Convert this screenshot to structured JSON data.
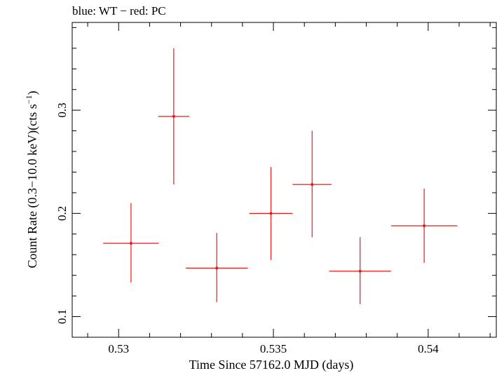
{
  "chart_data": {
    "type": "scatter",
    "title": "blue: WT − red: PC",
    "xlabel": "Time Since 57162.0 MJD (days)",
    "ylabel": {
      "prefix": "Count Rate (0.3−10.0 keV)(cts s",
      "superscript": "−1",
      "suffix": ")"
    },
    "xlim": [
      0.5285,
      0.5422
    ],
    "ylim": [
      0.08,
      0.385
    ],
    "x_ticks": [
      {
        "value": 0.53,
        "label": "0.53"
      },
      {
        "value": 0.535,
        "label": "0.535"
      },
      {
        "value": 0.54,
        "label": "0.54"
      }
    ],
    "y_ticks": [
      {
        "value": 0.1,
        "label": "0.1"
      },
      {
        "value": 0.2,
        "label": "0.2"
      },
      {
        "value": 0.3,
        "label": "0.3"
      }
    ],
    "grid": false,
    "series": [
      {
        "color": "#e41a1c",
        "points": [
          {
            "x": 0.5304,
            "y": 0.171,
            "xerr_low": 0.0009,
            "xerr_high": 0.0009,
            "y_low": 0.133,
            "y_high": 0.21
          },
          {
            "x": 0.53178,
            "y": 0.294,
            "xerr_low": 0.0005,
            "xerr_high": 0.0005,
            "y_low": 0.228,
            "y_high": 0.36
          },
          {
            "x": 0.53317,
            "y": 0.147,
            "xerr_low": 0.001,
            "xerr_high": 0.001,
            "y_low": 0.114,
            "y_high": 0.181
          },
          {
            "x": 0.53492,
            "y": 0.2,
            "xerr_low": 0.0007,
            "xerr_high": 0.0007,
            "y_low": 0.155,
            "y_high": 0.245
          },
          {
            "x": 0.53625,
            "y": 0.228,
            "xerr_low": 0.00063,
            "xerr_high": 0.00063,
            "y_low": 0.177,
            "y_high": 0.28
          },
          {
            "x": 0.5378,
            "y": 0.144,
            "xerr_low": 0.001,
            "xerr_high": 0.001,
            "y_low": 0.112,
            "y_high": 0.177
          },
          {
            "x": 0.53987,
            "y": 0.188,
            "xerr_low": 0.00107,
            "xerr_high": 0.00107,
            "y_low": 0.152,
            "y_high": 0.224
          }
        ]
      }
    ]
  }
}
